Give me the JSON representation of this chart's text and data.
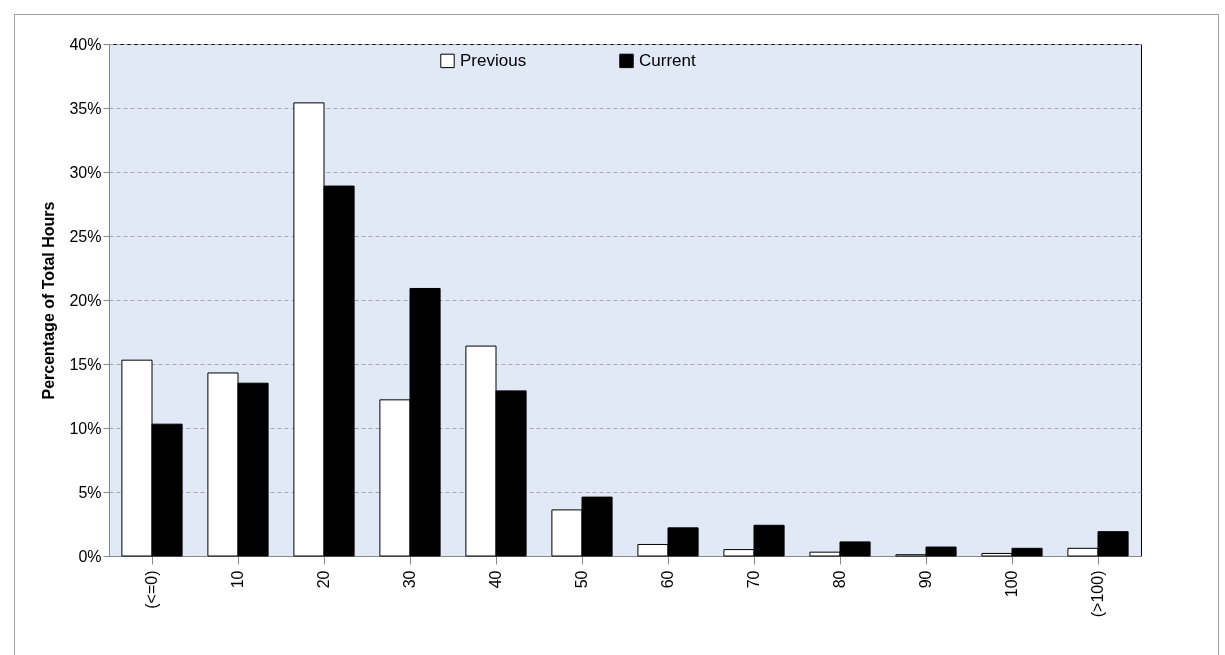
{
  "chart_data": {
    "type": "bar",
    "ylabel": "Percentage of Total Hours",
    "categories": [
      "(<=0)",
      "10",
      "20",
      "30",
      "40",
      "50",
      "60",
      "70",
      "80",
      "90",
      "100",
      "(>100)"
    ],
    "series": [
      {
        "name": "Previous",
        "color": "#ffffff",
        "values": [
          15.3,
          14.3,
          35.4,
          12.2,
          16.4,
          3.6,
          0.9,
          0.5,
          0.3,
          0.1,
          0.2,
          0.6
        ]
      },
      {
        "name": "Current",
        "color": "#000000",
        "values": [
          10.3,
          13.5,
          28.9,
          20.9,
          12.9,
          4.6,
          2.2,
          2.4,
          1.1,
          0.7,
          0.6,
          1.9
        ]
      }
    ],
    "ylim": [
      0,
      40
    ],
    "yticks": [
      {
        "value": 0,
        "label": "0%"
      },
      {
        "value": 5,
        "label": "5%"
      },
      {
        "value": 10,
        "label": "10%"
      },
      {
        "value": 15,
        "label": "15%"
      },
      {
        "value": 20,
        "label": "20%"
      },
      {
        "value": 25,
        "label": "25%"
      },
      {
        "value": 30,
        "label": "30%"
      },
      {
        "value": 35,
        "label": "35%"
      },
      {
        "value": 40,
        "label": "40%"
      }
    ],
    "grid": "y",
    "legend": "top"
  }
}
